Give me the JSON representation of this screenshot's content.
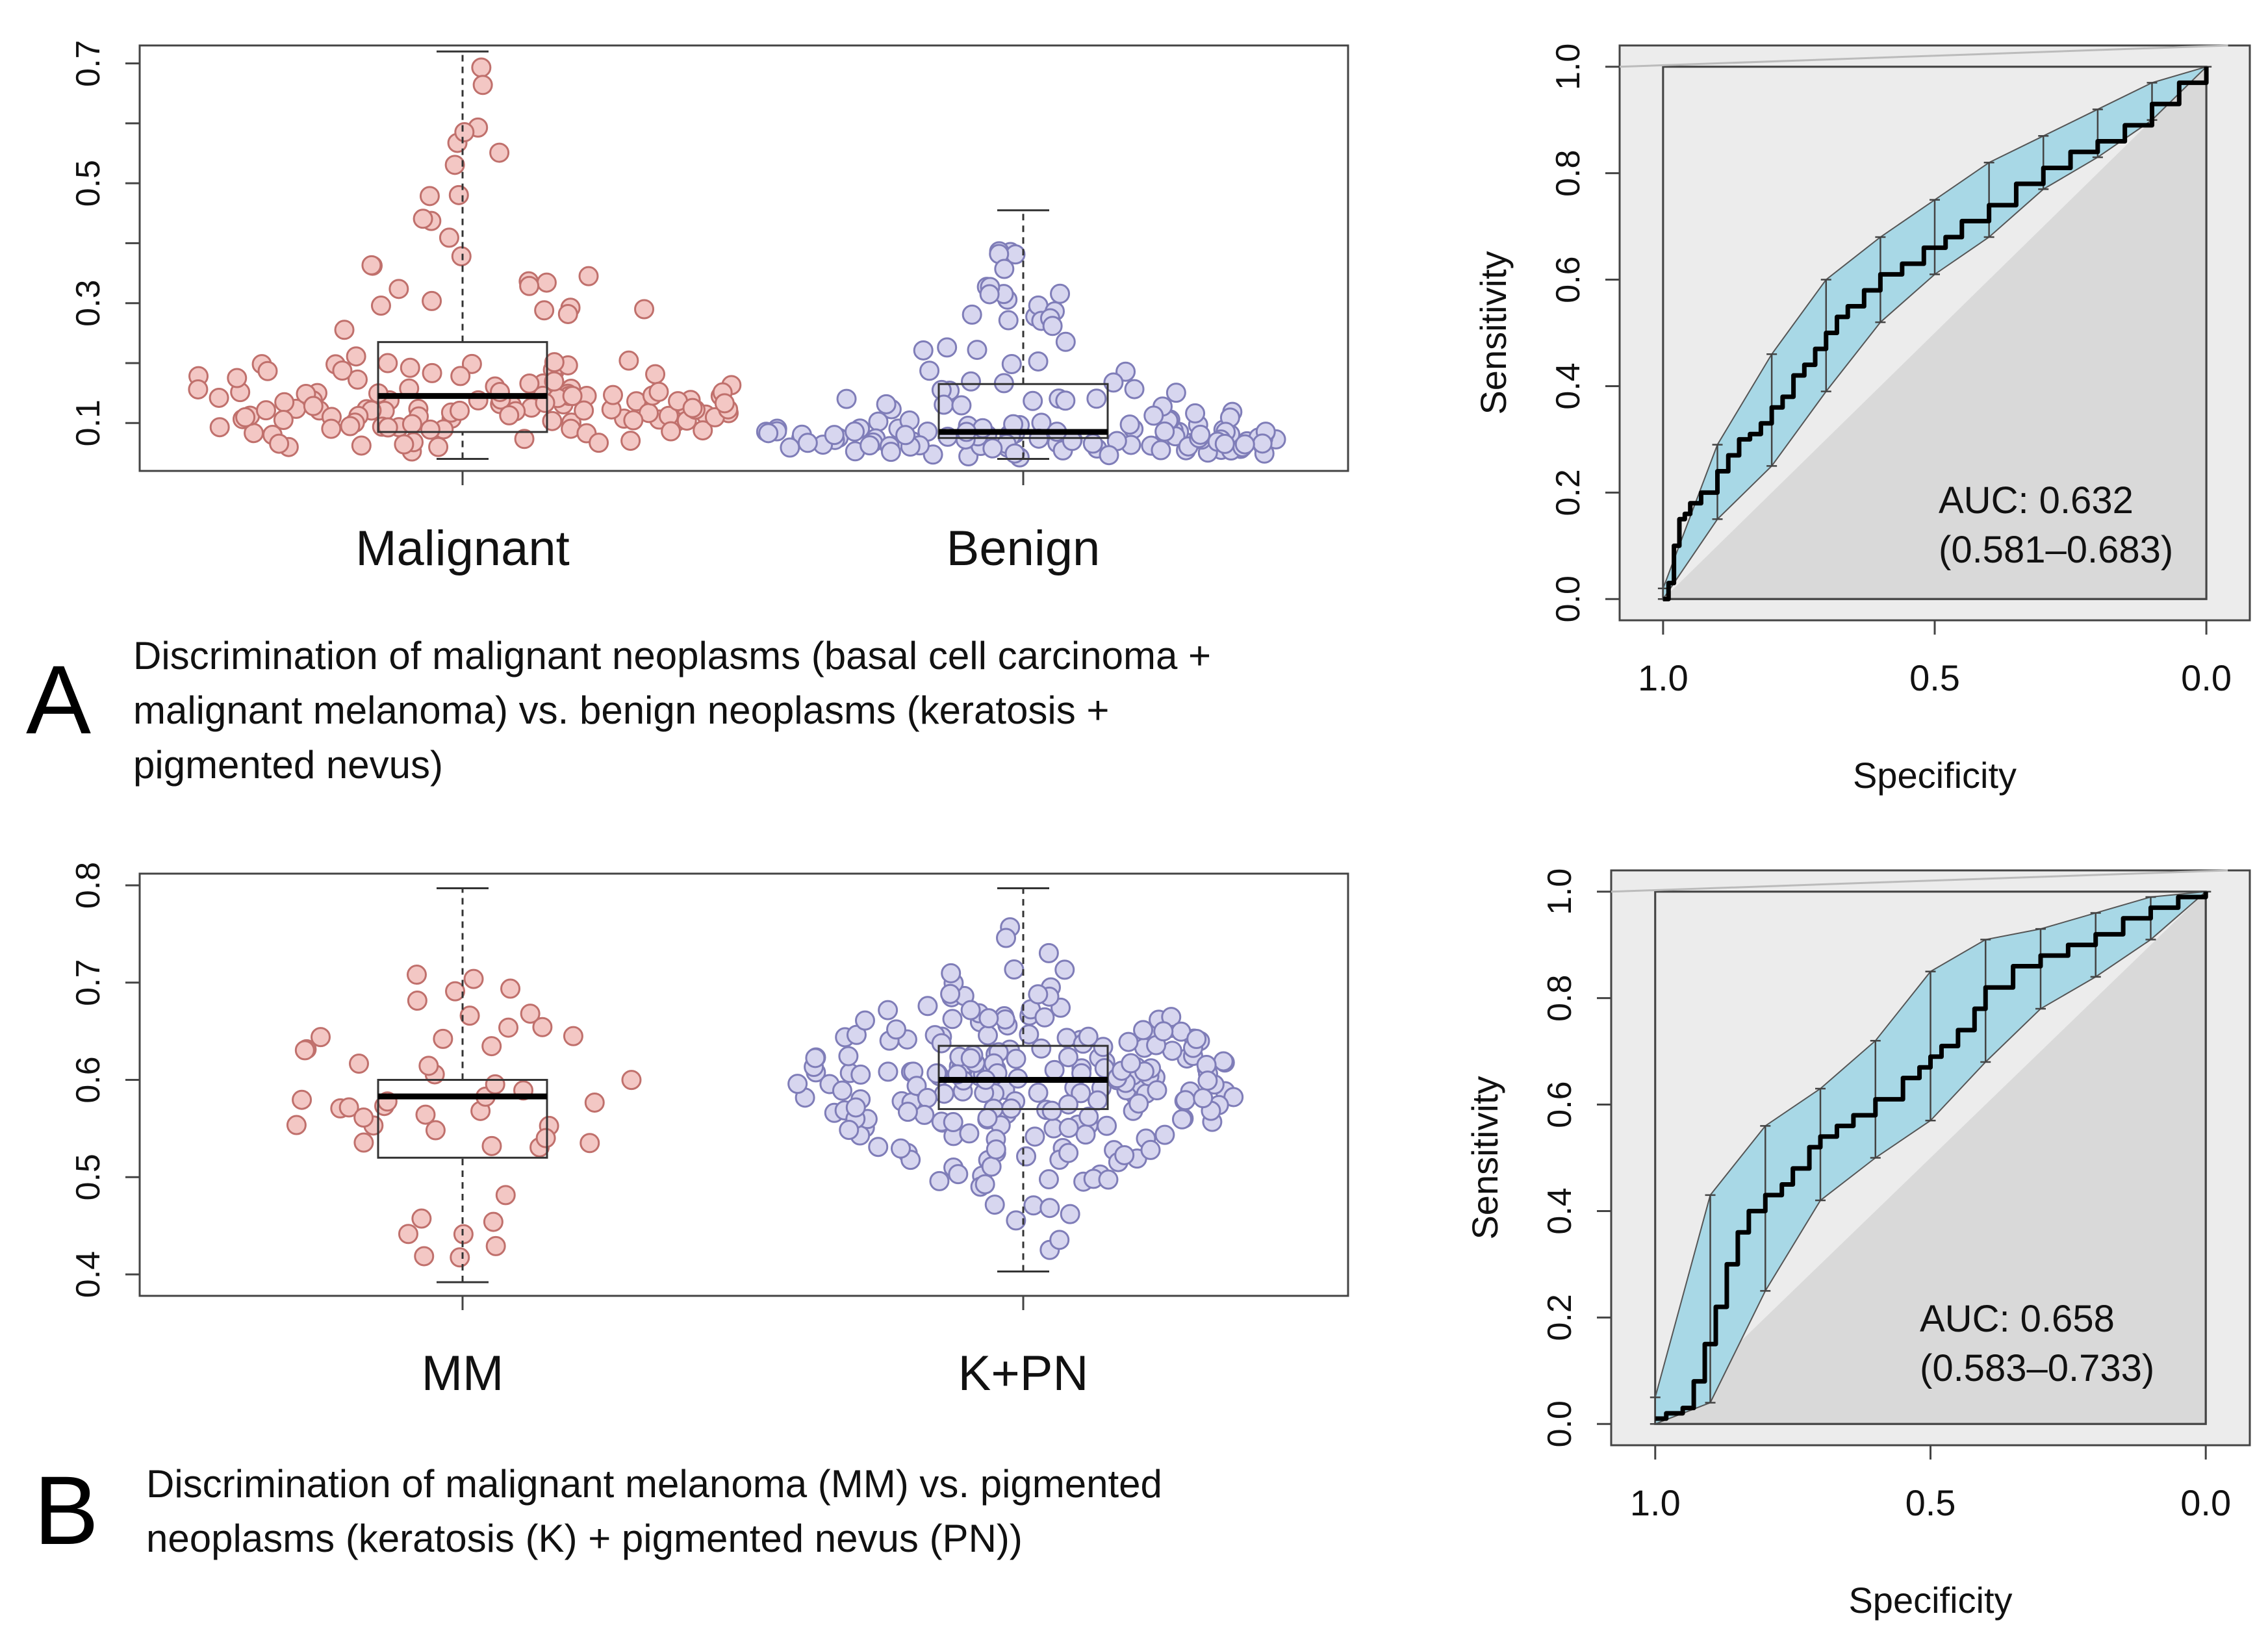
{
  "panels": [
    {
      "letter": "A",
      "caption": [
        "Discrimination of malignant neoplasms (basal cell carcinoma +",
        "malignant melanoma) vs. benign neoplasms (keratosis +",
        "pigmented nevus)"
      ]
    },
    {
      "letter": "B",
      "caption": [
        "Discrimination of malignant melanoma (MM) vs. pigmented",
        "neoplasms (keratosis (K) + pigmented nevus (PN))"
      ]
    }
  ],
  "colors": {
    "group1_fill": "#f3c7c4",
    "group1_stroke": "#c0706c",
    "group2_fill": "#d7d6ef",
    "group2_stroke": "#7f7db8",
    "ci_band": "#a8d8e6",
    "roc_outer": "#ececec",
    "roc_inner": "#d9d9d9"
  },
  "chart_data": [
    {
      "type": "boxplot",
      "panel": "A",
      "categories": [
        "Malignant",
        "Benign"
      ],
      "ylim": [
        0.02,
        0.73
      ],
      "yticks": [
        0.1,
        0.3,
        0.5,
        0.7
      ],
      "yticks_minor": [
        0.2,
        0.4,
        0.6
      ],
      "xlabel": "",
      "ylabel": "",
      "boxes": [
        {
          "name": "Malignant",
          "min": 0.04,
          "q1": 0.085,
          "median": 0.145,
          "q3": 0.235,
          "max": 0.72
        },
        {
          "name": "Benign",
          "min": 0.04,
          "q1": 0.075,
          "median": 0.085,
          "q3": 0.165,
          "max": 0.455
        }
      ]
    },
    {
      "type": "line",
      "panel": "A-ROC",
      "title": "",
      "xlabel": "Specificity",
      "ylabel": "Sensitivity",
      "xlim": [
        1.08,
        -0.08
      ],
      "ylim": [
        -0.04,
        1.04
      ],
      "xticks": [
        1.0,
        0.5,
        0.0
      ],
      "yticks": [
        0.0,
        0.2,
        0.4,
        0.6,
        0.8,
        1.0
      ],
      "auc_label": "AUC: 0.632",
      "ci_label": "(0.581–0.683)",
      "series": [
        {
          "name": "ROC",
          "x": [
            1.0,
            0.99,
            0.98,
            0.97,
            0.96,
            0.95,
            0.93,
            0.9,
            0.88,
            0.86,
            0.84,
            0.82,
            0.8,
            0.78,
            0.76,
            0.74,
            0.72,
            0.7,
            0.68,
            0.66,
            0.63,
            0.6,
            0.56,
            0.52,
            0.48,
            0.45,
            0.4,
            0.35,
            0.3,
            0.25,
            0.2,
            0.15,
            0.1,
            0.05,
            0.0
          ],
          "y": [
            0.0,
            0.03,
            0.1,
            0.15,
            0.16,
            0.18,
            0.2,
            0.24,
            0.27,
            0.3,
            0.31,
            0.33,
            0.36,
            0.38,
            0.42,
            0.44,
            0.47,
            0.5,
            0.53,
            0.55,
            0.58,
            0.61,
            0.63,
            0.66,
            0.68,
            0.71,
            0.74,
            0.78,
            0.81,
            0.84,
            0.86,
            0.89,
            0.93,
            0.97,
            1.0
          ]
        },
        {
          "name": "CI upper",
          "x": [
            1.0,
            0.9,
            0.8,
            0.7,
            0.6,
            0.5,
            0.4,
            0.3,
            0.2,
            0.1,
            0.0
          ],
          "y": [
            0.02,
            0.29,
            0.46,
            0.6,
            0.68,
            0.75,
            0.82,
            0.87,
            0.92,
            0.97,
            1.0
          ]
        },
        {
          "name": "CI lower",
          "x": [
            1.0,
            0.9,
            0.8,
            0.7,
            0.6,
            0.5,
            0.4,
            0.3,
            0.2,
            0.1,
            0.0
          ],
          "y": [
            0.0,
            0.15,
            0.25,
            0.39,
            0.52,
            0.61,
            0.68,
            0.77,
            0.83,
            0.9,
            1.0
          ]
        }
      ]
    },
    {
      "type": "boxplot",
      "panel": "B",
      "categories": [
        "MM",
        "K+PN"
      ],
      "ylim": [
        0.378,
        0.812
      ],
      "yticks": [
        0.4,
        0.5,
        0.6,
        0.7,
        0.8
      ],
      "yticks_minor": [],
      "xlabel": "",
      "ylabel": "",
      "boxes": [
        {
          "name": "MM",
          "min": 0.392,
          "q1": 0.52,
          "median": 0.583,
          "q3": 0.6,
          "max": 0.797
        },
        {
          "name": "K+PN",
          "min": 0.403,
          "q1": 0.57,
          "median": 0.6,
          "q3": 0.635,
          "max": 0.797
        }
      ]
    },
    {
      "type": "line",
      "panel": "B-ROC",
      "title": "",
      "xlabel": "Specificity",
      "ylabel": "Sensitivity",
      "xlim": [
        1.08,
        -0.08
      ],
      "ylim": [
        -0.04,
        1.04
      ],
      "xticks": [
        1.0,
        0.5,
        0.0
      ],
      "yticks": [
        0.0,
        0.2,
        0.4,
        0.6,
        0.8,
        1.0
      ],
      "auc_label": "AUC: 0.658",
      "ci_label": "(0.583–0.733)",
      "series": [
        {
          "name": "ROC",
          "x": [
            1.0,
            0.98,
            0.95,
            0.93,
            0.91,
            0.89,
            0.87,
            0.85,
            0.83,
            0.8,
            0.77,
            0.75,
            0.72,
            0.7,
            0.67,
            0.64,
            0.6,
            0.55,
            0.52,
            0.5,
            0.48,
            0.45,
            0.42,
            0.4,
            0.35,
            0.3,
            0.25,
            0.2,
            0.15,
            0.1,
            0.05,
            0.0
          ],
          "y": [
            0.01,
            0.02,
            0.03,
            0.08,
            0.15,
            0.22,
            0.3,
            0.36,
            0.4,
            0.43,
            0.45,
            0.48,
            0.52,
            0.54,
            0.56,
            0.58,
            0.61,
            0.65,
            0.67,
            0.69,
            0.71,
            0.74,
            0.78,
            0.82,
            0.86,
            0.88,
            0.9,
            0.92,
            0.95,
            0.97,
            0.99,
            1.0
          ]
        },
        {
          "name": "CI upper",
          "x": [
            1.0,
            0.9,
            0.8,
            0.7,
            0.6,
            0.5,
            0.4,
            0.3,
            0.2,
            0.1,
            0.0
          ],
          "y": [
            0.05,
            0.43,
            0.56,
            0.63,
            0.72,
            0.85,
            0.91,
            0.93,
            0.96,
            0.99,
            1.0
          ]
        },
        {
          "name": "CI lower",
          "x": [
            1.0,
            0.9,
            0.8,
            0.7,
            0.6,
            0.5,
            0.4,
            0.3,
            0.2,
            0.1,
            0.0
          ],
          "y": [
            0.0,
            0.04,
            0.25,
            0.42,
            0.5,
            0.57,
            0.68,
            0.78,
            0.84,
            0.91,
            1.0
          ]
        }
      ]
    }
  ]
}
